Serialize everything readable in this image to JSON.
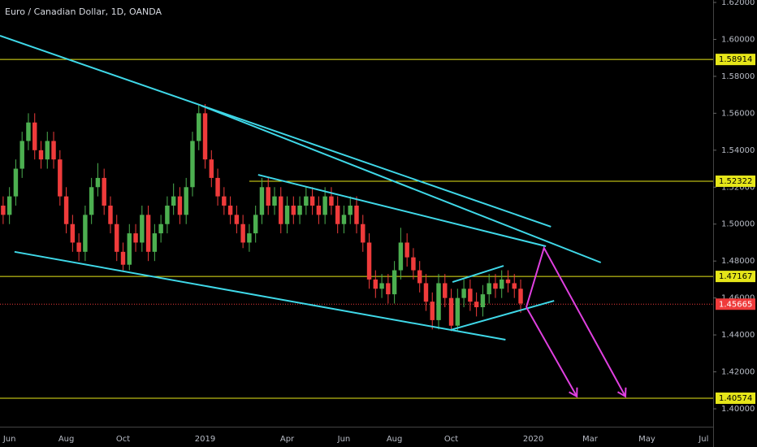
{
  "chart_data": {
    "type": "candlestick",
    "title": "Euro / Canadian Dollar, 1D, OANDA",
    "categories": [
      null,
      "Jun",
      null,
      null,
      null,
      null,
      null,
      null,
      null,
      null,
      "Aug",
      null,
      null,
      null,
      null,
      null,
      null,
      null,
      null,
      "Oct",
      null,
      null,
      null,
      null,
      null,
      null,
      null,
      null,
      null,
      null,
      null,
      null,
      "2019",
      null,
      null,
      null,
      null,
      null,
      null,
      null,
      null,
      null,
      null,
      null,
      null,
      "Apr",
      null,
      null,
      null,
      null,
      null,
      null,
      null,
      null,
      "Jun",
      null,
      null,
      null,
      null,
      null,
      null,
      null,
      "Aug",
      null,
      null,
      null,
      null,
      null,
      null,
      null,
      null,
      "Oct",
      null,
      null,
      null,
      null,
      null,
      null,
      null,
      null,
      null,
      null,
      null,
      null,
      "2020",
      null,
      null,
      null,
      null,
      null,
      null,
      null,
      null,
      "Mar",
      null,
      null,
      null,
      null,
      null,
      null,
      null,
      null,
      "May",
      null,
      null,
      null,
      null,
      null,
      null,
      null,
      null,
      "Jul",
      null
    ],
    "open": [
      1.51,
      1.505,
      1.515,
      1.53,
      1.545,
      1.555,
      1.54,
      1.535,
      1.545,
      1.535,
      1.515,
      1.5,
      1.49,
      1.485,
      1.505,
      1.52,
      1.525,
      1.51,
      1.5,
      1.485,
      1.478,
      1.495,
      1.49,
      1.505,
      1.485,
      1.495,
      1.5,
      1.51,
      1.515,
      1.505,
      1.52,
      1.545,
      1.56,
      1.535,
      1.525,
      1.515,
      1.51,
      1.505,
      1.5,
      1.49,
      1.495,
      1.505,
      1.52,
      1.51,
      1.515,
      1.5,
      1.51,
      1.505,
      1.51,
      1.515,
      1.51,
      1.505,
      1.515,
      1.51,
      1.5,
      1.505,
      1.51,
      1.5,
      1.49,
      1.47,
      1.465,
      1.468,
      1.462,
      1.475,
      1.49,
      1.482,
      1.475,
      1.468,
      1.458,
      1.448,
      1.468,
      1.46,
      1.445,
      1.46,
      1.465,
      1.458,
      1.455,
      1.462,
      1.468,
      1.465,
      1.47,
      1.468,
      1.465,
      null,
      null,
      null,
      null,
      null,
      null,
      null,
      null,
      null,
      null,
      null,
      null,
      null,
      null,
      null,
      null,
      null,
      null,
      null,
      null,
      null,
      null,
      null,
      null,
      null,
      null,
      null,
      null,
      null,
      null
    ],
    "high": [
      1.515,
      1.52,
      1.535,
      1.55,
      1.56,
      1.56,
      1.545,
      1.55,
      1.55,
      1.54,
      1.52,
      1.505,
      1.495,
      1.51,
      1.525,
      1.533,
      1.53,
      1.515,
      1.505,
      1.49,
      1.5,
      1.5,
      1.51,
      1.51,
      1.5,
      1.505,
      1.515,
      1.522,
      1.52,
      1.525,
      1.55,
      1.565,
      1.565,
      1.54,
      1.53,
      1.52,
      1.515,
      1.51,
      1.505,
      1.5,
      1.51,
      1.525,
      1.525,
      1.52,
      1.52,
      1.515,
      1.515,
      1.515,
      1.52,
      1.52,
      1.515,
      1.52,
      1.52,
      1.515,
      1.51,
      1.515,
      1.515,
      1.505,
      1.495,
      1.475,
      1.473,
      1.473,
      1.48,
      1.498,
      1.495,
      1.487,
      1.48,
      1.473,
      1.463,
      1.473,
      1.473,
      1.465,
      1.465,
      1.47,
      1.47,
      1.463,
      1.467,
      1.473,
      1.473,
      1.475,
      1.475,
      1.473,
      1.47,
      null,
      null,
      null,
      null,
      null,
      null,
      null,
      null,
      null,
      null,
      null,
      null,
      null,
      null,
      null,
      null,
      null,
      null,
      null,
      null,
      null,
      null,
      null,
      null,
      null,
      null,
      null,
      null,
      null,
      null
    ],
    "low": [
      1.5,
      1.5,
      1.51,
      1.525,
      1.54,
      1.535,
      1.53,
      1.53,
      1.53,
      1.51,
      1.495,
      1.485,
      1.48,
      1.48,
      1.5,
      1.515,
      1.505,
      1.495,
      1.48,
      1.475,
      1.475,
      1.485,
      1.485,
      1.48,
      1.48,
      1.49,
      1.495,
      1.505,
      1.5,
      1.5,
      1.515,
      1.54,
      1.53,
      1.52,
      1.51,
      1.505,
      1.5,
      1.495,
      1.487,
      1.485,
      1.49,
      1.5,
      1.505,
      1.505,
      1.495,
      1.495,
      1.5,
      1.5,
      1.505,
      1.505,
      1.5,
      1.5,
      1.505,
      1.495,
      1.495,
      1.5,
      1.495,
      1.485,
      1.465,
      1.46,
      1.46,
      1.457,
      1.457,
      1.47,
      1.477,
      1.47,
      1.463,
      1.453,
      1.443,
      1.443,
      1.455,
      1.442,
      1.442,
      1.455,
      1.453,
      1.45,
      1.45,
      1.457,
      1.46,
      1.46,
      1.463,
      1.46,
      1.452,
      null,
      null,
      null,
      null,
      null,
      null,
      null,
      null,
      null,
      null,
      null,
      null,
      null,
      null,
      null,
      null,
      null,
      null,
      null,
      null,
      null,
      null,
      null,
      null,
      null,
      null,
      null,
      null,
      null,
      null
    ],
    "close": [
      1.505,
      1.515,
      1.53,
      1.545,
      1.555,
      1.54,
      1.535,
      1.545,
      1.535,
      1.515,
      1.5,
      1.49,
      1.485,
      1.505,
      1.52,
      1.525,
      1.51,
      1.5,
      1.485,
      1.478,
      1.495,
      1.49,
      1.505,
      1.485,
      1.495,
      1.5,
      1.51,
      1.515,
      1.505,
      1.52,
      1.545,
      1.56,
      1.535,
      1.525,
      1.515,
      1.51,
      1.505,
      1.5,
      1.49,
      1.495,
      1.505,
      1.52,
      1.51,
      1.515,
      1.5,
      1.51,
      1.505,
      1.51,
      1.515,
      1.51,
      1.505,
      1.515,
      1.51,
      1.5,
      1.505,
      1.51,
      1.5,
      1.49,
      1.47,
      1.465,
      1.468,
      1.462,
      1.475,
      1.49,
      1.482,
      1.475,
      1.468,
      1.458,
      1.448,
      1.468,
      1.46,
      1.445,
      1.46,
      1.465,
      1.458,
      1.455,
      1.462,
      1.468,
      1.465,
      1.47,
      1.468,
      1.465,
      1.457,
      null,
      null,
      null,
      null,
      null,
      null,
      null,
      null,
      null,
      null,
      null,
      null,
      null,
      null,
      null,
      null,
      null,
      null,
      null,
      null,
      null,
      null,
      null,
      null,
      null,
      null,
      null,
      null,
      null,
      null
    ],
    "up_color": "#4caf50",
    "down_color": "#ef3b3b",
    "ylim": [
      1.4,
      1.62
    ],
    "yticks": [
      {
        "value": 1.4,
        "label": "1.40000"
      },
      {
        "value": 1.42,
        "label": "1.42000"
      },
      {
        "value": 1.44,
        "label": "1.44000"
      },
      {
        "value": 1.46,
        "label": "1.46000"
      },
      {
        "value": 1.48,
        "label": "1.48000"
      },
      {
        "value": 1.5,
        "label": "1.50000"
      },
      {
        "value": 1.52,
        "label": "1.52000"
      },
      {
        "value": 1.54,
        "label": "1.54000"
      },
      {
        "value": 1.56,
        "label": "1.56000"
      },
      {
        "value": 1.58,
        "label": "1.58000"
      },
      {
        "value": 1.6,
        "label": "1.60000"
      },
      {
        "value": 1.62,
        "label": "1.62000"
      }
    ],
    "levels": [
      {
        "value": 1.58914,
        "color": "#e6e619"
      },
      {
        "value": 1.52322,
        "color": "#e6e619",
        "from": 39
      },
      {
        "value": 1.47167,
        "color": "#e6e619"
      },
      {
        "value": 1.40574,
        "color": "#e6e619"
      }
    ],
    "current_price": {
      "value": 1.45665,
      "color": "#ef3b3b"
    },
    "trend_lines": [
      {
        "color": "#3fd8e8",
        "points": [
          [
            -0.5,
            1.602
          ],
          [
            86.8,
            1.4986
          ]
        ]
      },
      {
        "color": "#3fd8e8",
        "points": [
          [
            31.4,
            1.5641
          ],
          [
            94.7,
            1.4792
          ]
        ]
      },
      {
        "color": "#3fd8e8",
        "points": [
          [
            40.4,
            1.5267
          ],
          [
            86,
            1.488
          ]
        ]
      },
      {
        "color": "#3fd8e8",
        "points": [
          [
            1.8,
            1.485
          ],
          [
            79.6,
            1.4374
          ]
        ]
      },
      {
        "color": "#3fd8e8",
        "points": [
          [
            70.9,
            1.4427
          ],
          [
            87.3,
            1.4585
          ]
        ]
      },
      {
        "color": "#3fd8e8",
        "points": [
          [
            71.2,
            1.4686
          ],
          [
            79.3,
            1.4774
          ]
        ]
      }
    ],
    "arrows": [
      {
        "color": "#e040e0",
        "points": [
          [
            82.9,
            1.455
          ],
          [
            90.9,
            1.4067
          ]
        ]
      },
      {
        "color": "#e040e0",
        "points": [
          [
            82.9,
            1.455
          ],
          [
            85.7,
            1.4871
          ],
          [
            98.6,
            1.4067
          ]
        ]
      }
    ]
  }
}
